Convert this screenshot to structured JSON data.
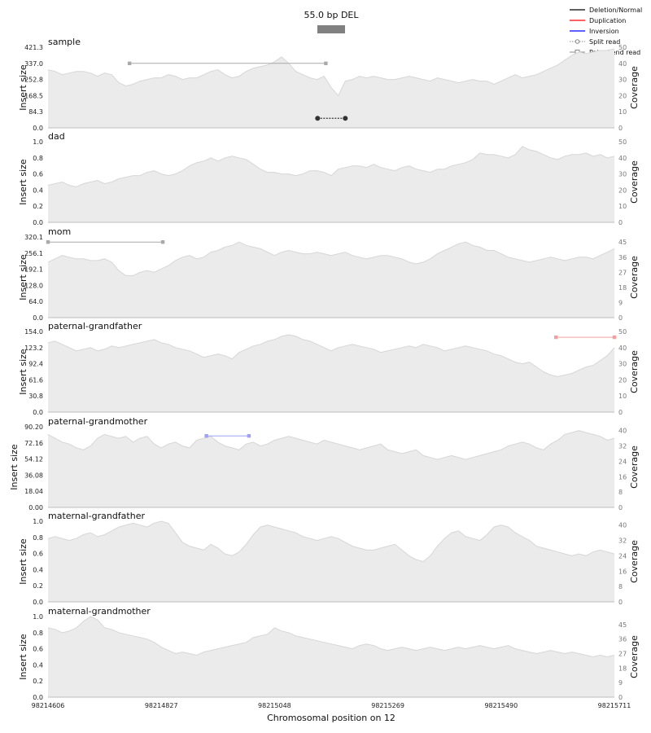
{
  "chart_data": {
    "type": "area",
    "title": "55.0 bp DEL",
    "xlabel": "Chromosomal position on 12",
    "ylabel_left": "Insert size",
    "ylabel_right": "Coverage",
    "xlim": [
      98214606,
      98215711
    ],
    "xticks": [
      "98214606",
      "98214827",
      "98215048",
      "98215269",
      "98215490",
      "98215711"
    ],
    "variant": {
      "start": 98215130,
      "end": 98215185,
      "color": "#808080"
    },
    "legend": {
      "position": "top-right",
      "entries": [
        {
          "label": "Deletion/Normal",
          "style": "line",
          "color": "#000000"
        },
        {
          "label": "Duplication",
          "style": "line",
          "color": "#ff0000"
        },
        {
          "label": "Inversion",
          "style": "line",
          "color": "#0000ff"
        },
        {
          "label": "Split read",
          "style": "dotted-circle",
          "color": "#888888"
        },
        {
          "label": "Paired-end read",
          "style": "line-square",
          "color": "#888888"
        }
      ]
    },
    "panels": [
      {
        "name": "sample",
        "yticks": [
          "0.0",
          "84.3",
          "168.5",
          "252.8",
          "337.0",
          "421.3"
        ],
        "ylim": [
          0,
          421.3
        ],
        "cov_ticks": [
          "0",
          "10",
          "20",
          "30",
          "40",
          "50"
        ],
        "cov_max": 50,
        "coverage": [
          36,
          35,
          33,
          34,
          35,
          35,
          34,
          32,
          34,
          33,
          28,
          26,
          27,
          29,
          30,
          31,
          31,
          33,
          32,
          30,
          31,
          31,
          33,
          35,
          36,
          33,
          31,
          32,
          35,
          37,
          38,
          39,
          41,
          44,
          40,
          35,
          33,
          31,
          30,
          32,
          25,
          20,
          29,
          30,
          32,
          31,
          32,
          31,
          30,
          30,
          31,
          32,
          31,
          30,
          29,
          31,
          30,
          29,
          28,
          29,
          30,
          29,
          29,
          27,
          29,
          31,
          33,
          31,
          32,
          33,
          35,
          37,
          39,
          42,
          45,
          47,
          46,
          47,
          48,
          48,
          49
        ],
        "reads": [
          {
            "kind": "paired",
            "x1": 98214765,
            "x2": 98215148,
            "y": 337.0,
            "color": "#aaaaaa"
          },
          {
            "kind": "split",
            "x1": 98215132,
            "x2": 98215186,
            "y": 50.0,
            "color": "#333333"
          }
        ]
      },
      {
        "name": "dad",
        "yticks": [
          "0.0",
          "0.2",
          "0.4",
          "0.6",
          "0.8",
          "1.0"
        ],
        "ylim": [
          0,
          1.0
        ],
        "cov_ticks": [
          "0",
          "10",
          "20",
          "30",
          "40",
          "50"
        ],
        "cov_max": 50,
        "coverage": [
          23,
          24,
          25,
          23,
          22,
          24,
          25,
          26,
          24,
          25,
          27,
          28,
          29,
          29,
          31,
          32,
          30,
          29,
          30,
          32,
          35,
          37,
          38,
          40,
          38,
          40,
          41,
          40,
          39,
          36,
          33,
          31,
          31,
          30,
          30,
          29,
          30,
          32,
          32,
          31,
          29,
          33,
          34,
          35,
          35,
          34,
          36,
          34,
          33,
          32,
          34,
          35,
          33,
          32,
          31,
          33,
          33,
          35,
          36,
          37,
          39,
          43,
          42,
          42,
          41,
          40,
          42,
          47,
          45,
          44,
          42,
          40,
          39,
          41,
          42,
          42,
          43,
          41,
          42,
          40,
          41
        ],
        "reads": []
      },
      {
        "name": "mom",
        "yticks": [
          "0.0",
          "64.0",
          "128.0",
          "192.1",
          "256.1",
          "320.1"
        ],
        "ylim": [
          0,
          320.1
        ],
        "cov_ticks": [
          "0",
          "9",
          "18",
          "27",
          "36",
          "45"
        ],
        "cov_max": 48,
        "coverage": [
          33,
          35,
          37,
          36,
          35,
          35,
          34,
          34,
          35,
          33,
          28,
          25,
          25,
          27,
          28,
          27,
          29,
          31,
          34,
          36,
          37,
          35,
          36,
          39,
          40,
          42,
          43,
          45,
          43,
          42,
          41,
          39,
          37,
          39,
          40,
          39,
          38,
          38,
          39,
          38,
          37,
          38,
          39,
          37,
          36,
          35,
          36,
          37,
          37,
          36,
          35,
          33,
          32,
          33,
          35,
          38,
          40,
          42,
          44,
          45,
          43,
          42,
          40,
          40,
          38,
          36,
          35,
          34,
          33,
          34,
          35,
          36,
          35,
          34,
          35,
          36,
          36,
          35,
          37,
          39,
          41
        ],
        "reads": [
          {
            "kind": "paired",
            "x1": 98214606,
            "x2": 98214830,
            "y": 300.0,
            "color": "#aaaaaa"
          }
        ]
      },
      {
        "name": "paternal-grandfather",
        "yticks": [
          "0.0",
          "30.8",
          "61.6",
          "92.4",
          "123.2",
          "154.0"
        ],
        "ylim": [
          0,
          154.0
        ],
        "cov_ticks": [
          "0",
          "10",
          "20",
          "30",
          "40",
          "50"
        ],
        "cov_max": 50,
        "coverage": [
          43,
          44,
          42,
          40,
          38,
          39,
          40,
          38,
          39,
          41,
          40,
          41,
          42,
          43,
          44,
          45,
          43,
          42,
          40,
          39,
          38,
          36,
          34,
          35,
          36,
          35,
          33,
          37,
          39,
          41,
          42,
          44,
          45,
          47,
          48,
          47,
          45,
          44,
          42,
          40,
          38,
          40,
          41,
          42,
          41,
          40,
          39,
          37,
          38,
          39,
          40,
          41,
          40,
          42,
          41,
          40,
          38,
          39,
          40,
          41,
          40,
          39,
          38,
          36,
          35,
          33,
          31,
          30,
          31,
          28,
          25,
          23,
          22,
          23,
          24,
          26,
          28,
          29,
          32,
          35,
          40
        ],
        "reads": [
          {
            "kind": "paired",
            "x1": 98215597,
            "x2": 98215711,
            "y": 143.0,
            "color": "#f4a0a0"
          }
        ]
      },
      {
        "name": "paternal-grandmother",
        "yticks": [
          "0.00",
          "18.04",
          "36.08",
          "54.12",
          "72.16",
          "90.20"
        ],
        "ylim": [
          0,
          90.2
        ],
        "cov_ticks": [
          "0",
          "8",
          "16",
          "24",
          "32",
          "40"
        ],
        "cov_max": 42,
        "coverage": [
          38,
          36,
          34,
          33,
          31,
          30,
          32,
          36,
          38,
          37,
          36,
          37,
          34,
          36,
          37,
          33,
          31,
          33,
          34,
          32,
          31,
          35,
          36,
          37,
          34,
          32,
          31,
          30,
          33,
          34,
          32,
          33,
          35,
          36,
          37,
          36,
          35,
          34,
          33,
          35,
          34,
          33,
          32,
          31,
          30,
          31,
          32,
          33,
          30,
          29,
          28,
          29,
          30,
          27,
          26,
          25,
          26,
          27,
          26,
          25,
          26,
          27,
          28,
          29,
          30,
          32,
          33,
          34,
          33,
          31,
          30,
          33,
          35,
          38,
          39,
          40,
          39,
          38,
          37,
          35,
          36
        ],
        "reads": [
          {
            "kind": "paired",
            "x1": 98214915,
            "x2": 98214998,
            "y": 80.0,
            "color": "#a0a0f4"
          }
        ]
      },
      {
        "name": "maternal-grandfather",
        "yticks": [
          "0.0",
          "0.2",
          "0.4",
          "0.6",
          "0.8",
          "1.0"
        ],
        "ylim": [
          0,
          1.0
        ],
        "cov_ticks": [
          "0",
          "8",
          "16",
          "24",
          "32",
          "40"
        ],
        "cov_max": 42,
        "coverage": [
          33,
          34,
          33,
          32,
          33,
          35,
          36,
          34,
          35,
          37,
          39,
          40,
          41,
          40,
          39,
          41,
          42,
          41,
          36,
          31,
          29,
          28,
          27,
          30,
          28,
          25,
          24,
          26,
          30,
          35,
          39,
          40,
          39,
          38,
          37,
          36,
          34,
          33,
          32,
          33,
          34,
          33,
          31,
          29,
          28,
          27,
          27,
          28,
          29,
          30,
          27,
          24,
          22,
          21,
          24,
          29,
          33,
          36,
          37,
          34,
          33,
          32,
          35,
          39,
          40,
          39,
          36,
          34,
          32,
          29,
          28,
          27,
          26,
          25,
          24,
          25,
          24,
          26,
          27,
          26,
          25
        ],
        "reads": []
      },
      {
        "name": "maternal-grandmother",
        "yticks": [
          "0.0",
          "0.2",
          "0.4",
          "0.6",
          "0.8",
          "1.0"
        ],
        "ylim": [
          0,
          1.0
        ],
        "cov_ticks": [
          "0",
          "9",
          "18",
          "27",
          "36",
          "45"
        ],
        "cov_max": 50,
        "coverage": [
          43,
          42,
          40,
          41,
          43,
          47,
          50,
          48,
          43,
          42,
          40,
          39,
          38,
          37,
          36,
          34,
          31,
          29,
          27,
          28,
          27,
          26,
          28,
          29,
          30,
          31,
          32,
          33,
          34,
          37,
          38,
          39,
          43,
          41,
          40,
          38,
          37,
          36,
          35,
          34,
          33,
          32,
          31,
          30,
          32,
          33,
          32,
          30,
          29,
          30,
          31,
          30,
          29,
          30,
          31,
          30,
          29,
          30,
          31,
          30,
          31,
          32,
          31,
          30,
          31,
          32,
          30,
          29,
          28,
          27,
          28,
          29,
          28,
          27,
          28,
          27,
          26,
          25,
          26,
          25,
          26
        ],
        "reads": []
      }
    ]
  }
}
